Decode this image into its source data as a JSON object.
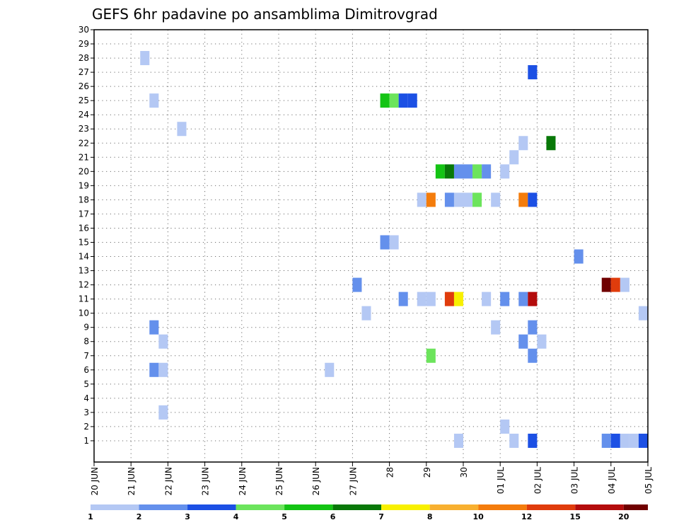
{
  "chart_data": {
    "type": "heatmap",
    "title": "GEFS 6hr padavine po ansamblima Dimitrovgrad",
    "ylim": [
      0,
      30
    ],
    "yticks": [
      "1",
      "2",
      "3",
      "4",
      "5",
      "6",
      "7",
      "8",
      "9",
      "10",
      "11",
      "12",
      "13",
      "14",
      "15",
      "16",
      "17",
      "18",
      "19",
      "20",
      "21",
      "22",
      "23",
      "24",
      "25",
      "26",
      "27",
      "28",
      "29",
      "30"
    ],
    "x_step_hours": 6,
    "xlim_steps": [
      0,
      60
    ],
    "xtick_labels": [
      "20 JUN",
      "21 JUN",
      "22 JUN",
      "23 JUN",
      "24 JUN",
      "25 JUN",
      "26 JUN",
      "27 JUN",
      "28",
      "29",
      "30",
      "01 JUL",
      "02 JUL",
      "03 JUL",
      "04 JUL",
      "05 JUL"
    ],
    "colorbar": {
      "labels": [
        "1",
        "2",
        "3",
        "4",
        "5",
        "6",
        "7",
        "8",
        "10",
        "12",
        "15",
        "20"
      ],
      "colors": [
        "#b4c8f4",
        "#6490ec",
        "#1c50e4",
        "#6ce45c",
        "#14c414",
        "#087808",
        "#f8f000",
        "#f8b030",
        "#f47c0c",
        "#e03c0c",
        "#b40c0c",
        "#700000"
      ]
    },
    "cells": [
      [
        5.5,
        28,
        "#b4c8f4"
      ],
      [
        47.5,
        27,
        "#1c50e4"
      ],
      [
        6.5,
        25,
        "#b4c8f4"
      ],
      [
        31.5,
        25,
        "#14c414"
      ],
      [
        32.5,
        25,
        "#6ce45c"
      ],
      [
        33.5,
        25,
        "#1c50e4"
      ],
      [
        34.5,
        25,
        "#1c50e4"
      ],
      [
        9.5,
        23,
        "#b4c8f4"
      ],
      [
        46.5,
        22,
        "#b4c8f4"
      ],
      [
        49.5,
        22,
        "#087808"
      ],
      [
        45.5,
        21,
        "#b4c8f4"
      ],
      [
        37.5,
        20,
        "#14c414"
      ],
      [
        38.5,
        20,
        "#087808"
      ],
      [
        39.5,
        20,
        "#6490ec"
      ],
      [
        40.5,
        20,
        "#6490ec"
      ],
      [
        41.5,
        20,
        "#6ce45c"
      ],
      [
        42.5,
        20,
        "#6490ec"
      ],
      [
        44.5,
        20,
        "#b4c8f4"
      ],
      [
        35.5,
        18,
        "#b4c8f4"
      ],
      [
        36.5,
        18,
        "#f47c0c"
      ],
      [
        38.5,
        18,
        "#6490ec"
      ],
      [
        39.5,
        18,
        "#b4c8f4"
      ],
      [
        40.5,
        18,
        "#b4c8f4"
      ],
      [
        41.5,
        18,
        "#6ce45c"
      ],
      [
        43.5,
        18,
        "#b4c8f4"
      ],
      [
        46.5,
        18,
        "#f47c0c"
      ],
      [
        47.5,
        18,
        "#1c50e4"
      ],
      [
        31.5,
        15,
        "#6490ec"
      ],
      [
        32.5,
        15,
        "#b4c8f4"
      ],
      [
        52.5,
        14,
        "#6490ec"
      ],
      [
        28.5,
        12,
        "#6490ec"
      ],
      [
        55.5,
        12,
        "#700000"
      ],
      [
        56.5,
        12,
        "#e03c0c"
      ],
      [
        57.5,
        12,
        "#b4c8f4"
      ],
      [
        33.5,
        11,
        "#6490ec"
      ],
      [
        35.5,
        11,
        "#b4c8f4"
      ],
      [
        36.5,
        11,
        "#b4c8f4"
      ],
      [
        38.5,
        11,
        "#e03c0c"
      ],
      [
        39.5,
        11,
        "#f8f000"
      ],
      [
        42.5,
        11,
        "#b4c8f4"
      ],
      [
        44.5,
        11,
        "#6490ec"
      ],
      [
        46.5,
        11,
        "#6490ec"
      ],
      [
        47.5,
        11,
        "#b40c0c"
      ],
      [
        29.5,
        10,
        "#b4c8f4"
      ],
      [
        59.5,
        10,
        "#b4c8f4"
      ],
      [
        6.5,
        9,
        "#6490ec"
      ],
      [
        43.5,
        9,
        "#b4c8f4"
      ],
      [
        47.5,
        9,
        "#6490ec"
      ],
      [
        7.5,
        8,
        "#b4c8f4"
      ],
      [
        46.5,
        8,
        "#6490ec"
      ],
      [
        48.5,
        8,
        "#b4c8f4"
      ],
      [
        36.5,
        7,
        "#6ce45c"
      ],
      [
        47.5,
        7,
        "#6490ec"
      ],
      [
        6.5,
        6,
        "#6490ec"
      ],
      [
        7.5,
        6,
        "#b4c8f4"
      ],
      [
        25.5,
        6,
        "#b4c8f4"
      ],
      [
        7.5,
        3,
        "#b4c8f4"
      ],
      [
        44.5,
        2,
        "#b4c8f4"
      ],
      [
        39.5,
        1,
        "#b4c8f4"
      ],
      [
        45.5,
        1,
        "#b4c8f4"
      ],
      [
        47.5,
        1,
        "#1c50e4"
      ],
      [
        55.5,
        1,
        "#6490ec"
      ],
      [
        56.5,
        1,
        "#1c50e4"
      ],
      [
        57.5,
        1,
        "#b4c8f4"
      ],
      [
        58.5,
        1,
        "#b4c8f4"
      ],
      [
        59.5,
        1,
        "#1c50e4"
      ]
    ]
  }
}
